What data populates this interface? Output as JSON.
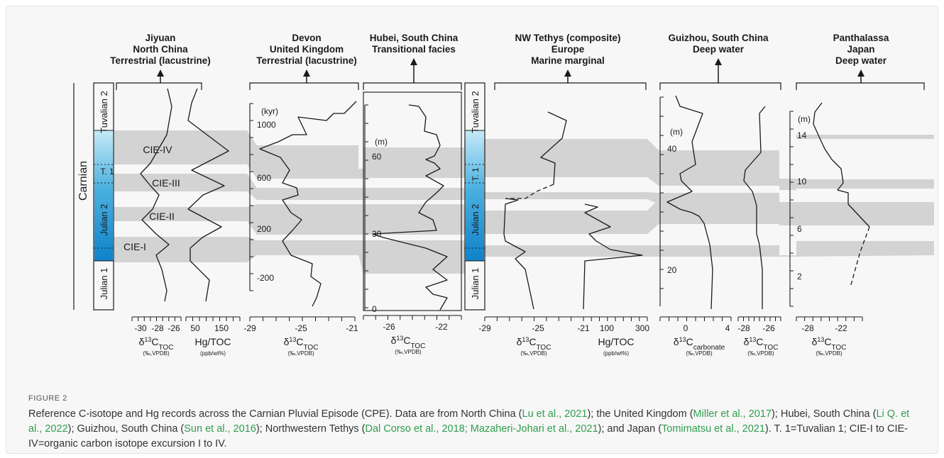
{
  "figure": {
    "label": "FIGURE 2",
    "caption": [
      {
        "t": "Reference C-isotope and Hg records across the Carnian Pluvial Episode (CPE). Data are from North China ("
      },
      {
        "t": "Lu et al., 2021",
        "ref": true
      },
      {
        "t": "); the United Kingdom ("
      },
      {
        "t": "Miller et al., 2017",
        "ref": true
      },
      {
        "t": "); Hubei, South China ("
      },
      {
        "t": "Li Q. et al., 2022",
        "ref": true
      },
      {
        "t": "); Guizhou, South China ("
      },
      {
        "t": "Sun et al., 2016",
        "ref": true
      },
      {
        "t": "); Northwestern Tethys ("
      },
      {
        "t": "Dal Corso et al., 2018; Mazaheri-Johari et al., 2021",
        "ref": true
      },
      {
        "t": "); and Japan ("
      },
      {
        "t": "Tomimatsu et al., 2021",
        "ref": true
      },
      {
        "t": "). T. 1=Tuvalian 1; CIE-I to CIE-IV=organic carbon isotope excursion I to IV."
      }
    ]
  },
  "stratigraphy": {
    "stage": "Carnian",
    "substages": [
      "Tuvalian 2",
      "T. 1",
      "Julian 2",
      "Julian 1"
    ],
    "cie_labels": [
      "CIE-IV",
      "CIE-III",
      "CIE-II",
      "CIE-I"
    ]
  },
  "sections": [
    {
      "title_lines": [
        "Jiyuan",
        "North China",
        "Terrestrial (lacustrine)"
      ]
    },
    {
      "title_lines": [
        "Devon",
        "United Kingdom",
        "Terrestrial (lacustrine)"
      ]
    },
    {
      "title_lines": [
        "Hubei, South China",
        "Transitional facies"
      ]
    },
    {
      "title_lines": [
        "NW Tethys (composite)",
        "Europe",
        "Marine marginal"
      ]
    },
    {
      "title_lines": [
        "Guizhou, South China",
        "Deep water"
      ]
    },
    {
      "title_lines": [
        "Panthalassa",
        "Japan",
        "Deep water"
      ]
    }
  ],
  "depth_axes": [
    {
      "unit": "(kyr)",
      "ticks": [
        "1000",
        "600",
        "200",
        "-200"
      ]
    },
    {
      "unit": "(m)",
      "ticks": [
        "60",
        "30",
        "0"
      ]
    },
    {
      "unit": "(m)",
      "ticks": [
        "40",
        "20"
      ]
    },
    {
      "unit": "(m)",
      "ticks": [
        "14",
        "10",
        "6",
        "2"
      ]
    }
  ],
  "x_axes": [
    {
      "ticks": [
        "-30",
        "-28",
        "-26"
      ],
      "label": "δ13C",
      "sub": "TOC",
      "units": "(‰,VPDB)"
    },
    {
      "ticks": [
        "50",
        "150"
      ],
      "label": "Hg/TOC",
      "units": "(ppb/wt%)"
    },
    {
      "ticks": [
        "-29",
        "-25",
        "-21"
      ],
      "label": "δ13C",
      "sub": "TOC",
      "units": "(‰,VPDB)"
    },
    {
      "ticks": [
        "-26",
        "-22"
      ],
      "label": "δ13C",
      "sub": "TOC",
      "units": "(‰,VPDB)"
    },
    {
      "ticks": [
        "-29",
        "-25",
        "-21"
      ],
      "label": "δ13C",
      "sub": "TOC",
      "units": "(‰,VPDB)"
    },
    {
      "ticks": [
        "100",
        "300"
      ],
      "label": "Hg/TOC",
      "units": "(ppb/wt%)"
    },
    {
      "ticks": [
        "0",
        "4"
      ],
      "label": "δ13C",
      "sub": "carbonate",
      "units": "(‰,VPDB)"
    },
    {
      "ticks": [
        "-28",
        "-26"
      ],
      "label": "δ13C",
      "sub": "TOC",
      "units": "(‰,VPDB)"
    },
    {
      "ticks": [
        "-28",
        "-22"
      ],
      "label": "δ13C",
      "sub": "TOC",
      "units": "(‰,VPDB)"
    }
  ],
  "colors": {
    "band": "#d3d3d3",
    "stage_top": "#c6eaf7",
    "stage_bottom": "#0f82c9",
    "line": "#1a1a1a",
    "reference_link": "#2f9e4e"
  }
}
